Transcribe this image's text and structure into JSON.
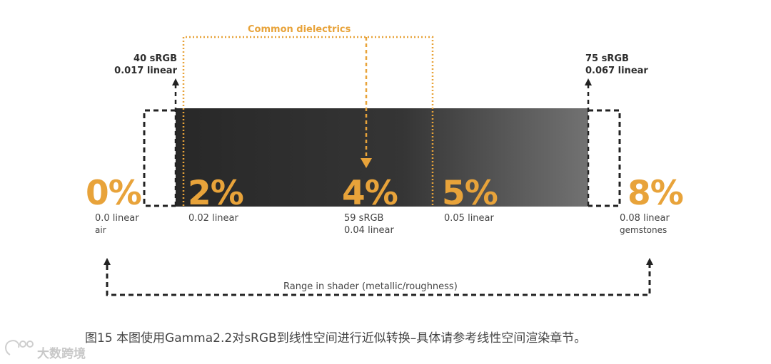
{
  "title": "Common dielectrics",
  "left_top": {
    "srgb": "40 sRGB",
    "linear": "0.017 linear"
  },
  "right_top": {
    "srgb": "75 sRGB",
    "linear": "0.067 linear"
  },
  "markers": [
    {
      "pct": "0%",
      "line1": "0.0 linear",
      "line2": "air"
    },
    {
      "pct": "2%",
      "line1": "0.02 linear",
      "line2": ""
    },
    {
      "pct": "4%",
      "line1": "59 sRGB",
      "line2": "0.04 linear"
    },
    {
      "pct": "5%",
      "line1": "0.05 linear",
      "line2": ""
    },
    {
      "pct": "8%",
      "line1": "0.08 linear",
      "line2": "gemstones"
    }
  ],
  "range_label": "Range in shader (metallic/roughness)",
  "caption": "图15  本图使用Gamma2.2对sRGB到线性空间进行近似转换–具体请参考线性空间渲染章节。",
  "watermark": "大数跨境",
  "colors": {
    "accent": "#e8a33a",
    "bar_dark": "#2a2a2a",
    "bar_light": "#6e6e6e",
    "dash": "#222222"
  }
}
